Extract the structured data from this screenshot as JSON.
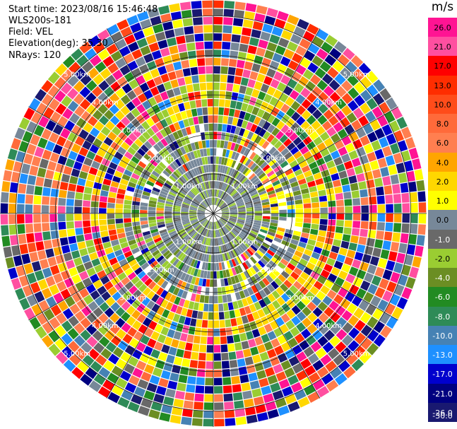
{
  "header": {
    "start_time": "Start time: 2023/08/16 15:46:48",
    "station": "WLS200s-181",
    "field": "Field: VEL",
    "elevation": "Elevation(deg): 35.30",
    "nrays": "NRays: 120"
  },
  "colorbar": {
    "unit": "m/s",
    "ticks": [
      "26.0",
      "21.0",
      "17.0",
      "13.0",
      "10.0",
      "8.0",
      "6.0",
      "4.0",
      "2.0",
      "1.0",
      "0.0",
      "-1.0",
      "-2.0",
      "-4.0",
      "-6.0",
      "-8.0",
      "-10.0",
      "-13.0",
      "-17.0",
      "-21.0",
      "-26.0",
      "-30.0"
    ],
    "colors": [
      "#ff1493",
      "#ff4fa0",
      "#ff0000",
      "#ff2d00",
      "#ff4c1a",
      "#ff6a3a",
      "#ff7f50",
      "#ffa500",
      "#ffd700",
      "#ffff00",
      "#778899",
      "#696969",
      "#9acd32",
      "#6b8e23",
      "#228b22",
      "#2e8b57",
      "#4682b4",
      "#1e90ff",
      "#0000cd",
      "#000080",
      "#191970"
    ]
  },
  "chart_data": {
    "type": "heatmap",
    "projection": "polar PPI",
    "field": "VEL",
    "units": "m/s",
    "nrays": 120,
    "elevation_deg": 35.3,
    "range_rings_km": [
      "1.00km",
      "2.00km",
      "3.00km",
      "4.00km",
      "5.00km"
    ],
    "color_scale_min": -30.0,
    "color_scale_max": 26.0
  }
}
